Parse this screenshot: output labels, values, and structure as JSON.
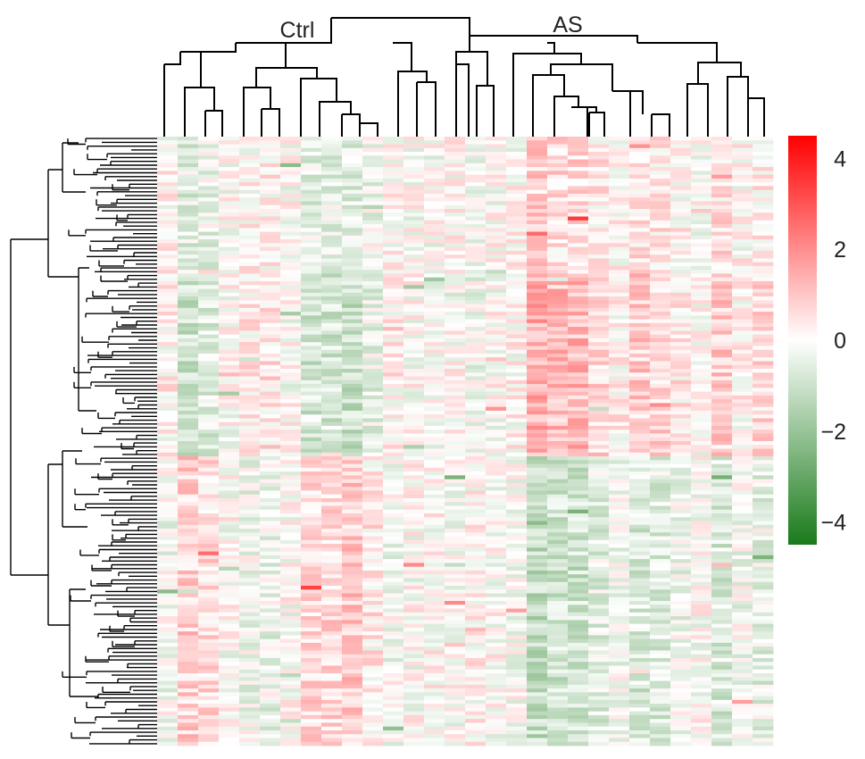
{
  "chart_data": {
    "type": "heatmap",
    "title": "",
    "column_groups": [
      "Ctrl",
      "AS"
    ],
    "n_columns": 30,
    "color_scale": {
      "min": -4.5,
      "max": 4.5,
      "low_color": "#1a7a1a",
      "mid_color": "#ffffff",
      "high_color": "#ff0000",
      "ticks": [
        "4",
        "2",
        "0",
        "−2",
        "−4"
      ],
      "tick_values": [
        4,
        2,
        0,
        -2,
        -4
      ]
    },
    "row_dendrogram": true,
    "column_dendrogram": true
  }
}
